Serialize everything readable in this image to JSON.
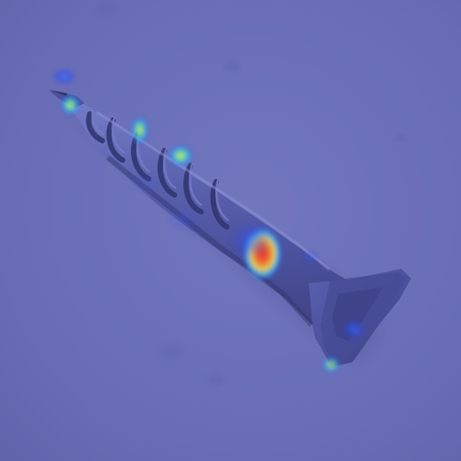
{
  "image": {
    "subject": "screw",
    "overlay": "heatmap",
    "colors": {
      "background": "#6a6fb4",
      "background_light": "#7479bd",
      "screw_dark": "#3e4379",
      "screw_mid": "#5960a8",
      "screw_light": "#8b91d4",
      "heat_low": "#2b49ff",
      "heat_mid": "#43d2ff",
      "heat_high": "#fff14a",
      "heat_peak": "#ff3b1f"
    }
  }
}
